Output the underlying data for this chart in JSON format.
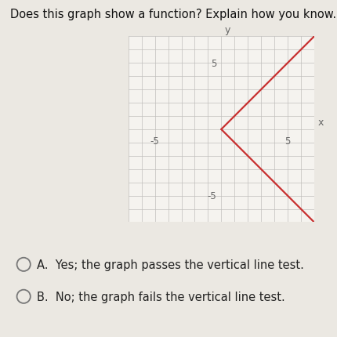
{
  "question_text": "Does this graph show a function? Explain how you know.",
  "background_color": "#ebe8e2",
  "plot_background": "#f5f3ef",
  "grid_color": "#c0bfbc",
  "axis_color": "#666666",
  "line_color": "#c83030",
  "line_width": 1.6,
  "xlim": [
    -7,
    7
  ],
  "ylim": [
    -7,
    7
  ],
  "xlabel": "x",
  "ylabel": "y",
  "vertex_x": 0,
  "vertex_y": 0,
  "upper_end_x": 7,
  "upper_end_y": 7,
  "lower_end_x": 7,
  "lower_end_y": -7,
  "answer_A": "Yes; the graph passes the vertical line test.",
  "answer_B": "No; the graph fails the vertical line test.",
  "font_size_title": 10.5,
  "font_size_answer": 10.5,
  "font_size_tick": 8.5,
  "font_size_axlabel": 9
}
